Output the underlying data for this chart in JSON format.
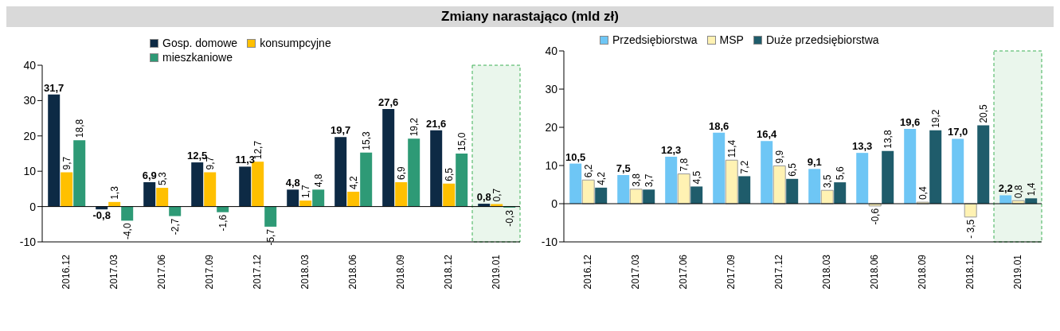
{
  "chart_data": [
    {
      "type": "bar",
      "title": "Zmiany narastająco (mld zł)",
      "categories": [
        "2016.12",
        "2017.03",
        "2017.06",
        "2017.09",
        "2017.12",
        "2018.03",
        "2018.06",
        "2018.09",
        "2018.12",
        "2019.01"
      ],
      "series": [
        {
          "name": "Gosp. domowe",
          "color": "#0d2a45",
          "values": [
            31.7,
            -0.8,
            6.9,
            12.5,
            11.3,
            4.8,
            19.7,
            27.6,
            21.6,
            0.8
          ],
          "value_labels": [
            "31,7",
            "-0,8",
            "6,9",
            "12,5",
            "11,3",
            "4,8",
            "19,7",
            "27,6",
            "21,6",
            "0,8"
          ]
        },
        {
          "name": "konsumpcyjne",
          "color": "#ffc000",
          "values": [
            9.7,
            1.3,
            5.3,
            9.7,
            12.7,
            1.7,
            4.2,
            6.9,
            6.5,
            0.7
          ],
          "value_labels": [
            "9,7",
            "1,3",
            "5,3",
            "9,7",
            "12,7",
            "1,7",
            "4,2",
            "6,9",
            "6,5",
            "0,7"
          ]
        },
        {
          "name": "mieszkaniowe",
          "color": "#2e9a76",
          "values": [
            18.8,
            -4.0,
            -2.7,
            -1.6,
            -5.7,
            4.8,
            15.3,
            19.2,
            15.0,
            -0.3
          ],
          "value_labels": [
            "18,8",
            "-4,0",
            "-2,7",
            "-1,6",
            "-5,7",
            "4,8",
            "15,3",
            "19,2",
            "15,0",
            "-0,3"
          ]
        }
      ],
      "ylim": [
        -10,
        40
      ],
      "yticks": [
        -10,
        0,
        10,
        20,
        30,
        40
      ],
      "legend": "top",
      "bands": [
        {
          "axis": "x",
          "from": "2019.01",
          "to": "2019.01",
          "color": "#eaf6ec"
        }
      ]
    },
    {
      "type": "bar",
      "categories": [
        "2016.12",
        "2017.03",
        "2017.06",
        "2017.09",
        "2017.12",
        "2018.03",
        "2018.06",
        "2018.09",
        "2018.12",
        "2019.01"
      ],
      "series": [
        {
          "name": "Przedsiębiorstwa",
          "color": "#6ec6f5",
          "values": [
            10.5,
            7.5,
            12.3,
            18.6,
            16.4,
            9.1,
            13.3,
            19.6,
            17.0,
            2.2
          ],
          "value_labels": [
            "10,5",
            "7,5",
            "12,3",
            "18,6",
            "16,4",
            "9,1",
            "13,3",
            "19,6",
            "17,0",
            "2,2"
          ]
        },
        {
          "name": "MSP",
          "color": "#fff2b3",
          "values": [
            6.2,
            3.8,
            7.8,
            11.4,
            9.9,
            3.5,
            -0.6,
            0.4,
            -3.5,
            0.8
          ],
          "value_labels": [
            "6,2",
            "3,8",
            "7,8",
            "11,4",
            "9,9",
            "3,5",
            "-0,6",
            "0,4",
            "- 3,5",
            "0,8"
          ]
        },
        {
          "name": "Duże przedsiębiorstwa",
          "color": "#1f5c6b",
          "values": [
            4.2,
            3.7,
            4.5,
            7.2,
            6.5,
            5.6,
            13.8,
            19.2,
            20.5,
            1.4
          ],
          "value_labels": [
            "4,2",
            "3,7",
            "4,5",
            "7,2",
            "6,5",
            "5,6",
            "13,8",
            "19,2",
            "20,5",
            "1,4"
          ]
        }
      ],
      "ylim": [
        -10,
        40
      ],
      "yticks": [
        -10,
        0,
        10,
        20,
        30,
        40
      ],
      "legend": "top",
      "bands": [
        {
          "axis": "x",
          "from": "2019.01",
          "to": "2019.01",
          "color": "#eaf6ec"
        }
      ]
    }
  ]
}
